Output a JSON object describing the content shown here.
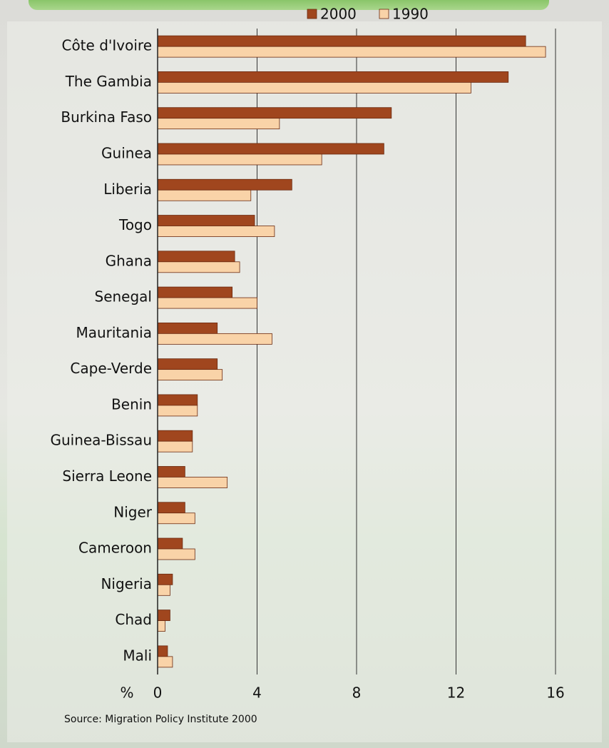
{
  "chart_data": {
    "type": "hbar",
    "categories": [
      "Côte d'Ivoire",
      "The Gambia",
      "Burkina Faso",
      "Guinea",
      "Liberia",
      "Togo",
      "Ghana",
      "Senegal",
      "Mauritania",
      "Cape-Verde",
      "Benin",
      "Guinea-Bissau",
      "Sierra Leone",
      "Niger",
      "Cameroon",
      "Nigeria",
      "Chad",
      "Mali"
    ],
    "series": [
      {
        "name": "2000",
        "color": "#a0461e",
        "values": [
          14.8,
          14.1,
          9.4,
          9.1,
          5.4,
          3.9,
          3.1,
          3.0,
          2.4,
          2.4,
          1.6,
          1.4,
          1.1,
          1.1,
          1.0,
          0.6,
          0.5,
          0.4
        ]
      },
      {
        "name": "1990",
        "color": "#f9d3a8",
        "values": [
          15.6,
          12.6,
          4.9,
          6.6,
          3.75,
          4.7,
          3.3,
          4.0,
          4.6,
          2.6,
          1.6,
          1.4,
          2.8,
          1.5,
          1.5,
          0.5,
          0.3,
          0.6
        ]
      }
    ],
    "x_label": "%",
    "xlim": [
      0,
      16
    ],
    "xticks": [
      0,
      4,
      8,
      12,
      16
    ],
    "grid": true,
    "source": "Source: Migration Policy Institute 2000"
  }
}
